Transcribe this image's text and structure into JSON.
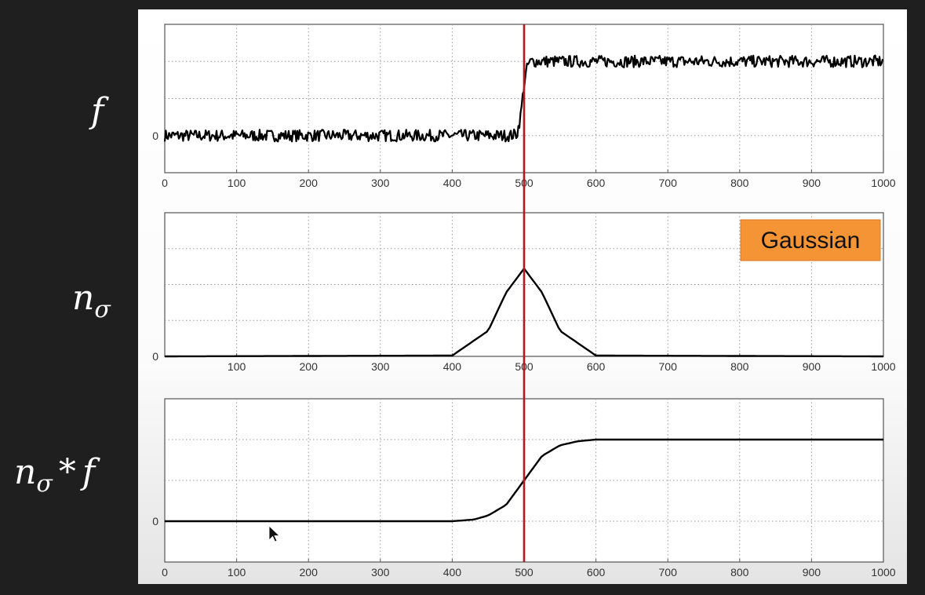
{
  "row_labels": {
    "f": "f",
    "n_base": "n",
    "n_sub": "σ",
    "nf_op": "*",
    "nf_f": "f"
  },
  "colors": {
    "marker": "#b3191e",
    "badge": "#f49434",
    "curve": "#000000",
    "grid": "#9a9a9a",
    "background": "#1f1f1f"
  },
  "cursor_icon": "mouse-pointer-icon",
  "chart_data": [
    {
      "type": "line",
      "title": "",
      "xlabel": "",
      "ylabel": "",
      "xlim": [
        0,
        1000
      ],
      "x_ticks": [
        "0",
        "100",
        "200",
        "300",
        "400",
        "500",
        "600",
        "700",
        "800",
        "900",
        "1000"
      ],
      "y_ticks": [
        "0"
      ],
      "ylim": [
        -0.5,
        1.5
      ],
      "grid": true,
      "series": [
        {
          "description": "noisy step signal",
          "x": [
            0,
            480,
            490,
            495,
            500,
            505,
            510,
            1000
          ],
          "values": [
            0,
            0,
            0.02,
            0.25,
            0.7,
            0.95,
            1,
            1
          ],
          "noise": 0.08
        }
      ],
      "vertical_marker": 500
    },
    {
      "type": "line",
      "title": "",
      "annotation": "Gaussian",
      "xlabel": "",
      "ylabel": "",
      "xlim": [
        0,
        1000
      ],
      "x_ticks": [
        "100",
        "200",
        "300",
        "400",
        "500",
        "600",
        "700",
        "800",
        "900",
        "1000"
      ],
      "y_ticks": [
        "0"
      ],
      "ylim": [
        0,
        1.8
      ],
      "grid": true,
      "series": [
        {
          "description": "gaussian kernel",
          "x": [
            0,
            400,
            450,
            475,
            500,
            525,
            550,
            600,
            1000
          ],
          "values": [
            0,
            0.01,
            0.32,
            0.8,
            1.1,
            0.8,
            0.32,
            0.01,
            0
          ]
        }
      ],
      "vertical_marker": 500
    },
    {
      "type": "line",
      "title": "",
      "xlabel": "",
      "ylabel": "",
      "xlim": [
        0,
        1000
      ],
      "x_ticks": [
        "0",
        "100",
        "200",
        "300",
        "400",
        "500",
        "600",
        "700",
        "800",
        "900",
        "1000"
      ],
      "y_ticks": [
        "0"
      ],
      "ylim": [
        -0.5,
        1.5
      ],
      "grid": true,
      "series": [
        {
          "description": "smoothed step (convolution)",
          "x": [
            0,
            400,
            430,
            450,
            475,
            500,
            525,
            550,
            575,
            600,
            1000
          ],
          "values": [
            0,
            0,
            0.02,
            0.07,
            0.2,
            0.5,
            0.8,
            0.93,
            0.98,
            1,
            1
          ]
        }
      ],
      "vertical_marker": 500
    }
  ]
}
